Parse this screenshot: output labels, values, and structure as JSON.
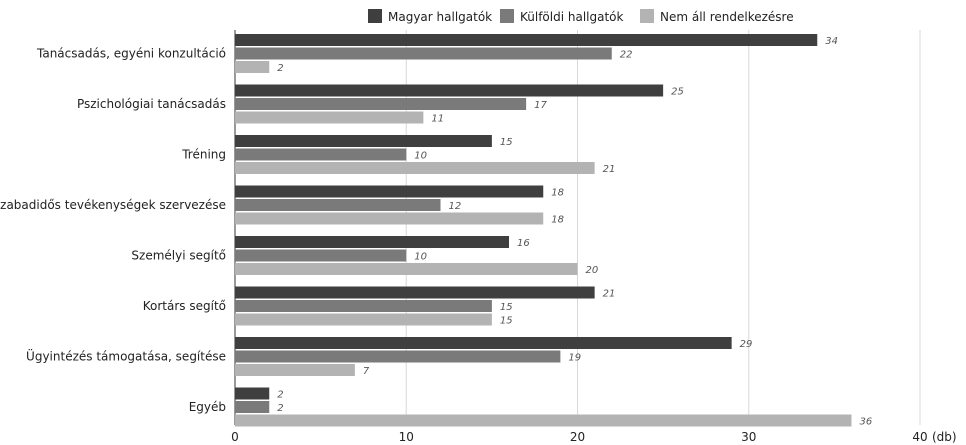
{
  "chart_data": {
    "type": "bar",
    "orientation": "horizontal",
    "unit": "(db)",
    "categories": [
      "Tanácsadás, egyéni konzultáció",
      "Pszichológiai tanácsadás",
      "Tréning",
      "Szabadidős tevékenységek szervezése",
      "Személyi segítő",
      "Kortárs segítő",
      "Ügyintézés támogatása, segítése",
      "Egyéb"
    ],
    "series": [
      {
        "name": "Magyar hallgatók",
        "color": "#3f3f3f",
        "values": [
          34,
          25,
          15,
          18,
          16,
          21,
          29,
          2
        ]
      },
      {
        "name": "Külföldi hallgatók",
        "color": "#7a7a7a",
        "values": [
          22,
          17,
          10,
          12,
          10,
          15,
          19,
          2
        ]
      },
      {
        "name": "Nem áll rendelkezésre",
        "color": "#b3b3b3",
        "values": [
          2,
          11,
          21,
          18,
          20,
          15,
          7,
          36
        ]
      }
    ],
    "xlim": [
      0,
      40
    ],
    "xticks": [
      0,
      10,
      20,
      30,
      40
    ],
    "grid": true,
    "legend_position": "top"
  }
}
